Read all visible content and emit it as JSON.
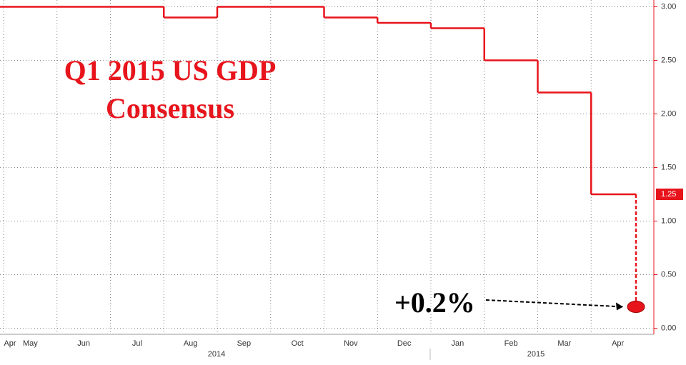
{
  "chart_data": {
    "type": "line",
    "title": "Q1 2015 US GDP",
    "subtitle": "Consensus",
    "x": [
      "2014-04",
      "2014-05",
      "2014-06",
      "2014-07",
      "2014-08",
      "2014-09",
      "2014-10",
      "2014-11",
      "2014-12",
      "2015-01",
      "2015-02",
      "2015-03",
      "2015-04"
    ],
    "x_labels": [
      "Apr",
      "May",
      "Jun",
      "Jul",
      "Aug",
      "Sep",
      "Oct",
      "Nov",
      "Dec",
      "Jan",
      "Feb",
      "Mar",
      "Apr"
    ],
    "year_labels": [
      "2014",
      "2015"
    ],
    "series": [
      {
        "name": "Consensus",
        "color": "#e8141c",
        "values": [
          3.0,
          3.0,
          3.0,
          3.0,
          2.9,
          3.0,
          3.0,
          2.9,
          2.85,
          2.8,
          2.5,
          2.2,
          1.25
        ]
      }
    ],
    "annotation": {
      "x": "2015-04",
      "value": 0.2,
      "label": "+0.2%"
    },
    "ylim": [
      -0.05,
      3.05
    ],
    "yticks": [
      {
        "value": 0,
        "label": "0.00"
      },
      {
        "value": 0.5,
        "label": "0.50"
      },
      {
        "value": 1,
        "label": "1.00"
      },
      {
        "value": 1.5,
        "label": "1.50"
      },
      {
        "value": 2,
        "label": "2.00"
      },
      {
        "value": 2.5,
        "label": "2.50"
      },
      {
        "value": 3,
        "label": "3.00"
      }
    ],
    "grid": true
  }
}
